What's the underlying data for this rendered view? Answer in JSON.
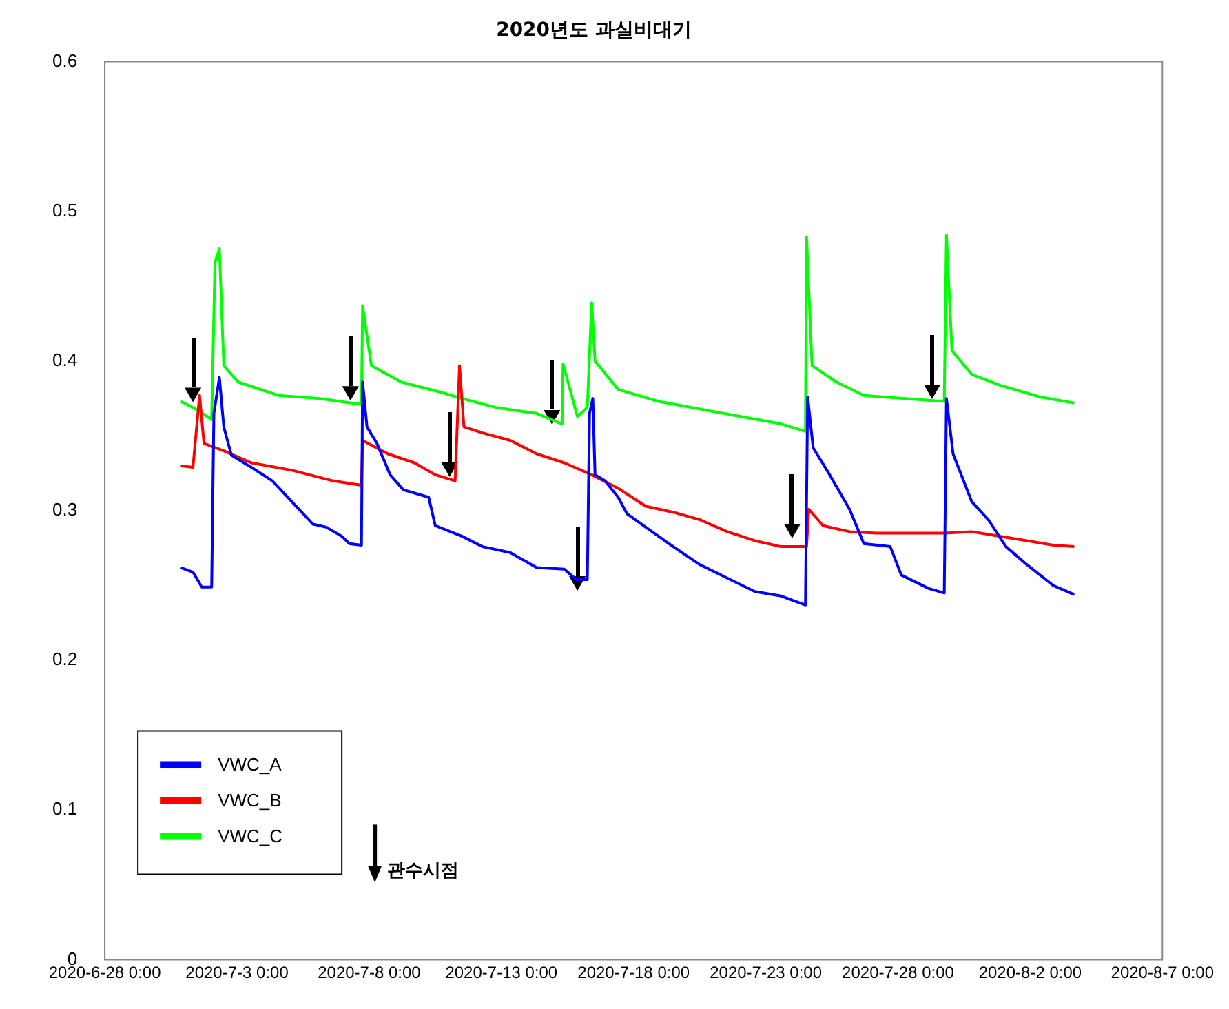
{
  "chart_data": {
    "type": "line",
    "title": "2020년도 과실비대기",
    "xlim": [
      "2020-06-28",
      "2020-08-07"
    ],
    "xticks": [
      {
        "value": "2020-06-28",
        "label": "2020-6-28 0:00"
      },
      {
        "value": "2020-07-03",
        "label": "2020-7-3 0:00"
      },
      {
        "value": "2020-07-08",
        "label": "2020-7-8 0:00"
      },
      {
        "value": "2020-07-13",
        "label": "2020-7-13 0:00"
      },
      {
        "value": "2020-07-18",
        "label": "2020-7-18 0:00"
      },
      {
        "value": "2020-07-23",
        "label": "2020-7-23 0:00"
      },
      {
        "value": "2020-07-28",
        "label": "2020-7-28 0:00"
      },
      {
        "value": "2020-08-02",
        "label": "2020-8-2 0:00"
      },
      {
        "value": "2020-08-07",
        "label": "2020-8-7 0:00"
      }
    ],
    "ylim": [
      0,
      0.6
    ],
    "yticks": [
      0,
      0.1,
      0.2,
      0.3,
      0.4,
      0.5,
      0.6
    ],
    "grid": false,
    "legend": "bottom left",
    "marker": "none",
    "line_style": "solid",
    "series": [
      {
        "name": "VWC_A",
        "color": "#0000ff",
        "x": [
          "2020-06-30T21:00",
          "2020-07-01T08:00",
          "2020-07-01T16:00",
          "2020-07-02T01:00",
          "2020-07-02T03:00",
          "2020-07-02T08:00",
          "2020-07-02T12:00",
          "2020-07-02T19:00",
          "2020-07-03T13:00",
          "2020-07-04T08:00",
          "2020-07-05T21:00",
          "2020-07-06T09:00",
          "2020-07-06T23:00",
          "2020-07-07T06:00",
          "2020-07-07T17:00",
          "2020-07-07T18:00",
          "2020-07-07T22:00",
          "2020-07-08T07:00",
          "2020-07-08T19:00",
          "2020-07-09T07:00",
          "2020-07-10T06:00",
          "2020-07-10T12:00",
          "2020-07-11T12:00",
          "2020-07-12T07:00",
          "2020-07-13T08:00",
          "2020-07-14T08:00",
          "2020-07-15T09:00",
          "2020-07-15T20:00",
          "2020-07-16T06:00",
          "2020-07-16T08:00",
          "2020-07-16T11:00",
          "2020-07-16T13:00",
          "2020-07-16T22:00",
          "2020-07-17T10:00",
          "2020-07-17T18:00",
          "2020-07-18T11:00",
          "2020-07-19T12:00",
          "2020-07-20T12:00",
          "2020-07-21T13:00",
          "2020-07-22T14:00",
          "2020-07-23T14:00",
          "2020-07-24T12:00",
          "2020-07-24T14:00",
          "2020-07-24T19:00",
          "2020-07-25T10:00",
          "2020-07-26T04:00",
          "2020-07-26T17:00",
          "2020-07-27T17:00",
          "2020-07-28T03:00",
          "2020-07-29T04:00",
          "2020-07-29T18:00",
          "2020-07-29T20:00",
          "2020-07-30T02:00",
          "2020-07-30T19:00",
          "2020-07-31T10:00",
          "2020-08-01T02:00",
          "2020-08-01T21:00",
          "2020-08-02T21:00",
          "2020-08-03T16:00"
        ],
        "values": [
          0.262,
          0.259,
          0.249,
          0.249,
          0.365,
          0.389,
          0.356,
          0.337,
          0.329,
          0.32,
          0.291,
          0.289,
          0.283,
          0.278,
          0.277,
          0.386,
          0.356,
          0.345,
          0.324,
          0.314,
          0.309,
          0.29,
          0.283,
          0.276,
          0.272,
          0.262,
          0.261,
          0.254,
          0.254,
          0.365,
          0.375,
          0.324,
          0.32,
          0.309,
          0.298,
          0.289,
          0.276,
          0.264,
          0.255,
          0.246,
          0.243,
          0.237,
          0.376,
          0.342,
          0.324,
          0.301,
          0.278,
          0.276,
          0.257,
          0.248,
          0.245,
          0.375,
          0.338,
          0.306,
          0.294,
          0.276,
          0.264,
          0.25,
          0.244
        ]
      },
      {
        "name": "VWC_B",
        "color": "#ff0000",
        "x": [
          "2020-06-30T21:00",
          "2020-07-01T08:00",
          "2020-07-01T14:00",
          "2020-07-01T18:00",
          "2020-07-02T12:00",
          "2020-07-03T13:00",
          "2020-07-05T02:00",
          "2020-07-06T15:00",
          "2020-07-07T17:00",
          "2020-07-07T18:00",
          "2020-07-08T17:00",
          "2020-07-09T17:00",
          "2020-07-10T12:00",
          "2020-07-11T06:00",
          "2020-07-11T10:00",
          "2020-07-11T14:00",
          "2020-07-12T07:00",
          "2020-07-13T08:00",
          "2020-07-14T08:00",
          "2020-07-15T09:00",
          "2020-07-16T10:00",
          "2020-07-17T10:00",
          "2020-07-18T11:00",
          "2020-07-19T12:00",
          "2020-07-20T12:00",
          "2020-07-21T13:00",
          "2020-07-22T14:00",
          "2020-07-23T14:00",
          "2020-07-24T13:00",
          "2020-07-24T15:00",
          "2020-07-25T04:00",
          "2020-07-26T04:00",
          "2020-07-27T05:00",
          "2020-07-28T06:00",
          "2020-07-29T18:00",
          "2020-07-30T19:00",
          "2020-07-31T20:00",
          "2020-08-01T21:00",
          "2020-08-02T21:00",
          "2020-08-03T16:00"
        ],
        "values": [
          0.33,
          0.329,
          0.377,
          0.345,
          0.34,
          0.332,
          0.327,
          0.32,
          0.317,
          0.347,
          0.338,
          0.332,
          0.324,
          0.32,
          0.397,
          0.356,
          0.352,
          0.347,
          0.338,
          0.332,
          0.324,
          0.315,
          0.303,
          0.299,
          0.294,
          0.286,
          0.28,
          0.276,
          0.276,
          0.301,
          0.29,
          0.286,
          0.285,
          0.285,
          0.285,
          0.286,
          0.283,
          0.28,
          0.277,
          0.276
        ]
      },
      {
        "name": "VWC_C",
        "color": "#00ff00",
        "x": [
          "2020-06-30T21:00",
          "2020-07-01T08:00",
          "2020-07-02T01:00",
          "2020-07-02T04:00",
          "2020-07-02T08:00",
          "2020-07-02T12:00",
          "2020-07-03T01:00",
          "2020-07-04T14:00",
          "2020-07-06T03:00",
          "2020-07-07T17:00",
          "2020-07-07T18:00",
          "2020-07-08T02:00",
          "2020-07-09T05:00",
          "2020-07-10T18:00",
          "2020-07-11T12:00",
          "2020-07-12T19:00",
          "2020-07-14T08:00",
          "2020-07-15T07:00",
          "2020-07-15T08:00",
          "2020-07-15T21:00",
          "2020-07-16T06:00",
          "2020-07-16T10:00",
          "2020-07-16T13:00",
          "2020-07-17T10:00",
          "2020-07-18T23:00",
          "2020-07-20T12:00",
          "2020-07-22T01:00",
          "2020-07-23T14:00",
          "2020-07-24T12:00",
          "2020-07-24T13:00",
          "2020-07-24T18:00",
          "2020-07-25T16:00",
          "2020-07-26T17:00",
          "2020-07-28T06:00",
          "2020-07-29T18:00",
          "2020-07-29T20:00",
          "2020-07-30T01:00",
          "2020-07-30T19:00",
          "2020-07-31T20:00",
          "2020-08-02T09:00",
          "2020-08-03T16:00"
        ],
        "values": [
          0.373,
          0.369,
          0.361,
          0.466,
          0.475,
          0.397,
          0.386,
          0.377,
          0.375,
          0.371,
          0.437,
          0.397,
          0.386,
          0.379,
          0.375,
          0.369,
          0.365,
          0.358,
          0.398,
          0.363,
          0.369,
          0.439,
          0.4,
          0.381,
          0.373,
          0.368,
          0.363,
          0.358,
          0.353,
          0.483,
          0.397,
          0.386,
          0.377,
          0.375,
          0.373,
          0.484,
          0.407,
          0.391,
          0.384,
          0.376,
          0.372
        ]
      },
      {
        "name": "관수시점",
        "type": "scatter",
        "marker": "triangle",
        "color": "#000000",
        "x": [
          "2020-07-01T08:00",
          "2020-07-07T07:00",
          "2020-07-11T01:00",
          "2020-07-14T22:00",
          "2020-07-15T21:00",
          "2020-07-24T00:00",
          "2020-07-29T07:00"
        ],
        "values": [
          0.379,
          0.38,
          0.329,
          0.364,
          0.253,
          0.288,
          0.381
        ]
      }
    ]
  }
}
